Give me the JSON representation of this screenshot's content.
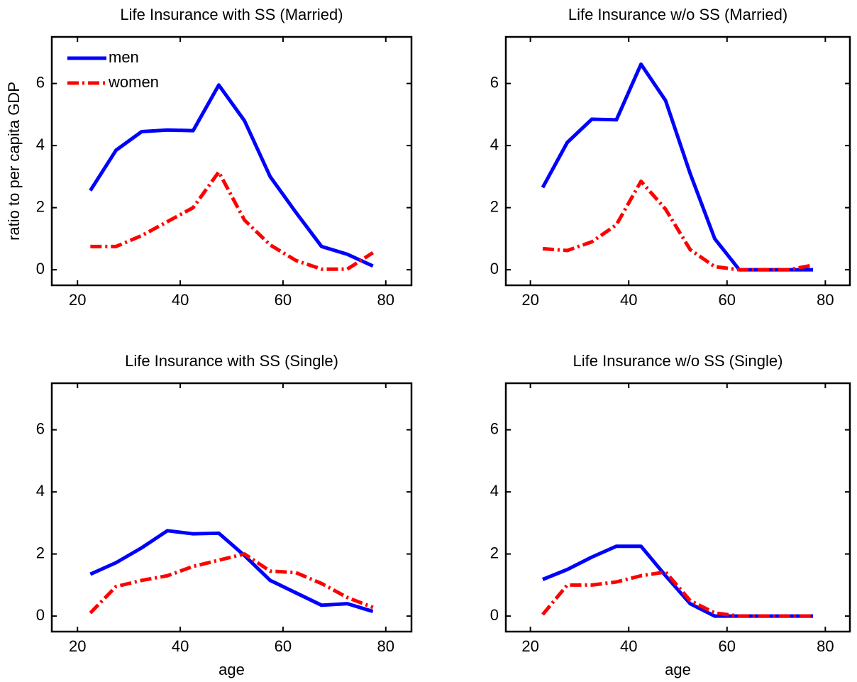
{
  "chart_data": [
    {
      "type": "line",
      "title": "Life Insurance with SS (Married)",
      "ylabel": "ratio to per capita GDP",
      "legend": "upper left",
      "x": [
        22.5,
        27.5,
        32.5,
        37.5,
        42.5,
        47.5,
        52.5,
        57.5,
        62.5,
        67.5,
        72.5,
        77.5
      ],
      "series": [
        {
          "name": "men",
          "color": "#0000ff",
          "style": "solid",
          "values": [
            2.55,
            3.85,
            4.45,
            4.5,
            4.48,
            5.95,
            4.8,
            3.0,
            1.85,
            0.75,
            0.5,
            0.12
          ]
        },
        {
          "name": "women",
          "color": "#ff0000",
          "style": "dashdot",
          "values": [
            0.75,
            0.75,
            1.1,
            1.55,
            2.0,
            3.15,
            1.6,
            0.8,
            0.3,
            0.02,
            0.02,
            0.55
          ]
        }
      ],
      "xlim": [
        15,
        85
      ],
      "xticks": [
        20,
        40,
        60,
        80
      ],
      "ylim": [
        -0.5,
        7.5
      ],
      "yticks": [
        0,
        2,
        4,
        6
      ]
    },
    {
      "type": "line",
      "title": "Life Insurance w/o SS (Married)",
      "x": [
        22.5,
        27.5,
        32.5,
        37.5,
        42.5,
        47.5,
        52.5,
        57.5,
        62.5,
        67.5,
        72.5,
        77.5
      ],
      "series": [
        {
          "name": "men",
          "color": "#0000ff",
          "style": "solid",
          "values": [
            2.65,
            4.1,
            4.85,
            4.83,
            6.62,
            5.45,
            3.1,
            1.0,
            0,
            0,
            0,
            0
          ]
        },
        {
          "name": "women",
          "color": "#ff0000",
          "style": "dashdot",
          "values": [
            0.68,
            0.62,
            0.9,
            1.45,
            2.85,
            1.95,
            0.65,
            0.1,
            0,
            0,
            0,
            0.15
          ]
        }
      ],
      "xlim": [
        15,
        85
      ],
      "xticks": [
        20,
        40,
        60,
        80
      ],
      "ylim": [
        -0.5,
        7.5
      ],
      "yticks": [
        0,
        2,
        4,
        6
      ]
    },
    {
      "type": "line",
      "title": "Life Insurance with SS (Single)",
      "xlabel": "age",
      "x": [
        22.5,
        27.5,
        32.5,
        37.5,
        42.5,
        47.5,
        52.5,
        57.5,
        62.5,
        67.5,
        72.5,
        77.5
      ],
      "series": [
        {
          "name": "men",
          "color": "#0000ff",
          "style": "solid",
          "values": [
            1.35,
            1.72,
            2.2,
            2.75,
            2.65,
            2.67,
            1.95,
            1.15,
            0.75,
            0.35,
            0.4,
            0.15
          ]
        },
        {
          "name": "women",
          "color": "#ff0000",
          "style": "dashdot",
          "values": [
            0.1,
            0.95,
            1.15,
            1.3,
            1.6,
            1.8,
            2.0,
            1.45,
            1.4,
            1.05,
            0.6,
            0.28
          ]
        }
      ],
      "xlim": [
        15,
        85
      ],
      "xticks": [
        20,
        40,
        60,
        80
      ],
      "ylim": [
        -0.5,
        7.5
      ],
      "yticks": [
        0,
        2,
        4,
        6
      ]
    },
    {
      "type": "line",
      "title": "Life Insurance w/o SS (Single)",
      "xlabel": "age",
      "x": [
        22.5,
        27.5,
        32.5,
        37.5,
        42.5,
        47.5,
        52.5,
        57.5,
        62.5,
        67.5,
        72.5,
        77.5
      ],
      "series": [
        {
          "name": "men",
          "color": "#0000ff",
          "style": "solid",
          "values": [
            1.18,
            1.5,
            1.9,
            2.25,
            2.25,
            1.3,
            0.4,
            0,
            0,
            0,
            0,
            0
          ]
        },
        {
          "name": "women",
          "color": "#ff0000",
          "style": "dashdot",
          "values": [
            0.05,
            1.0,
            1.0,
            1.1,
            1.3,
            1.42,
            0.5,
            0.1,
            0,
            0,
            0,
            0
          ]
        }
      ],
      "xlim": [
        15,
        85
      ],
      "xticks": [
        20,
        40,
        60,
        80
      ],
      "ylim": [
        -0.5,
        7.5
      ],
      "yticks": [
        0,
        2,
        4,
        6
      ]
    }
  ]
}
